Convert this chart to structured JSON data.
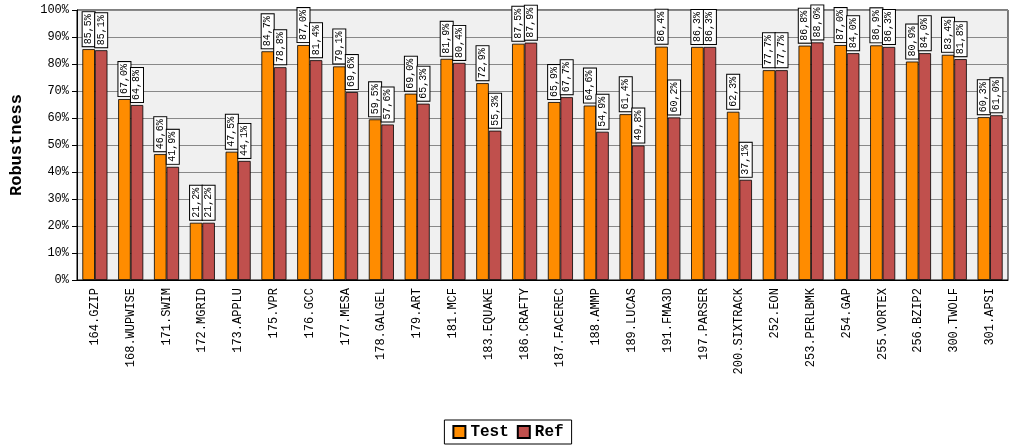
{
  "chart_data": {
    "type": "bar",
    "ylabel": "Robustness",
    "categories": [
      "164.GZIP",
      "168.WUPWISE",
      "171.SWIM",
      "172.MGRID",
      "173.APPLU",
      "175.VPR",
      "176.GCC",
      "177.MESA",
      "178.GALGEL",
      "179.ART",
      "181.MCF",
      "183.EQUAKE",
      "186.CRAFTY",
      "187.FACEREC",
      "188.AMMP",
      "189.LUCAS",
      "191.FMA3D",
      "197.PARSER",
      "200.SIXTRACK",
      "252.EON",
      "253.PERLBMK",
      "254.GAP",
      "255.VORTEX",
      "256.BZIP2",
      "300.TWOLF",
      "301.APSI"
    ],
    "series": [
      {
        "name": "Test",
        "color": "#ff8c00",
        "values": [
          85.5,
          67.0,
          46.6,
          21.2,
          47.5,
          84.7,
          87.0,
          79.1,
          59.5,
          69.0,
          81.9,
          72.9,
          87.5,
          65.9,
          64.6,
          61.4,
          86.4,
          86.3,
          62.3,
          77.7,
          86.8,
          87.0,
          86.9,
          80.9,
          83.4,
          60.3
        ],
        "value_labels": [
          "85,5%",
          "67,0%",
          "46,6%",
          "21,2%",
          "47,5%",
          "84,7%",
          "87,0%",
          "79,1%",
          "59,5%",
          "69,0%",
          "81,9%",
          "72,9%",
          "87,5%",
          "65,9%",
          "64,6%",
          "61,4%",
          "86,4%",
          "86,3%",
          "62,3%",
          "77,7%",
          "86,8%",
          "87,0%",
          "86,9%",
          "80,9%",
          "83,4%",
          "60,3%"
        ]
      },
      {
        "name": "Ref",
        "color": "#c0504d",
        "values": [
          85.1,
          64.8,
          41.9,
          21.2,
          44.1,
          78.8,
          81.4,
          69.6,
          57.6,
          65.3,
          80.4,
          55.3,
          87.9,
          67.7,
          54.9,
          49.8,
          60.2,
          86.3,
          37.1,
          77.7,
          88.0,
          84.0,
          86.3,
          84.0,
          81.8,
          61.0
        ],
        "value_labels": [
          "85,1%",
          "64,8%",
          "41,9%",
          "21,2%",
          "44,1%",
          "78,8%",
          "81,4%",
          "69,6%",
          "57,6%",
          "65,3%",
          "80,4%",
          "55,3%",
          "87,9%",
          "67,7%",
          "54,9%",
          "49,8%",
          "60,2%",
          "86,3%",
          "37,1%",
          "77,7%",
          "88,0%",
          "84,0%",
          "86,3%",
          "84,0%",
          "81,8%",
          "61,0%"
        ]
      }
    ],
    "ylim": [
      0,
      100
    ],
    "yticks": [
      {
        "value": 0,
        "label": "0%"
      },
      {
        "value": 10,
        "label": "10%"
      },
      {
        "value": 20,
        "label": "20%"
      },
      {
        "value": 30,
        "label": "30%"
      },
      {
        "value": 40,
        "label": "40%"
      },
      {
        "value": 50,
        "label": "50%"
      },
      {
        "value": 60,
        "label": "60%"
      },
      {
        "value": 70,
        "label": "70%"
      },
      {
        "value": 80,
        "label": "80%"
      },
      {
        "value": 90,
        "label": "90%"
      },
      {
        "value": 100,
        "label": "100%"
      }
    ],
    "grid": "y",
    "legend": "bottom"
  }
}
